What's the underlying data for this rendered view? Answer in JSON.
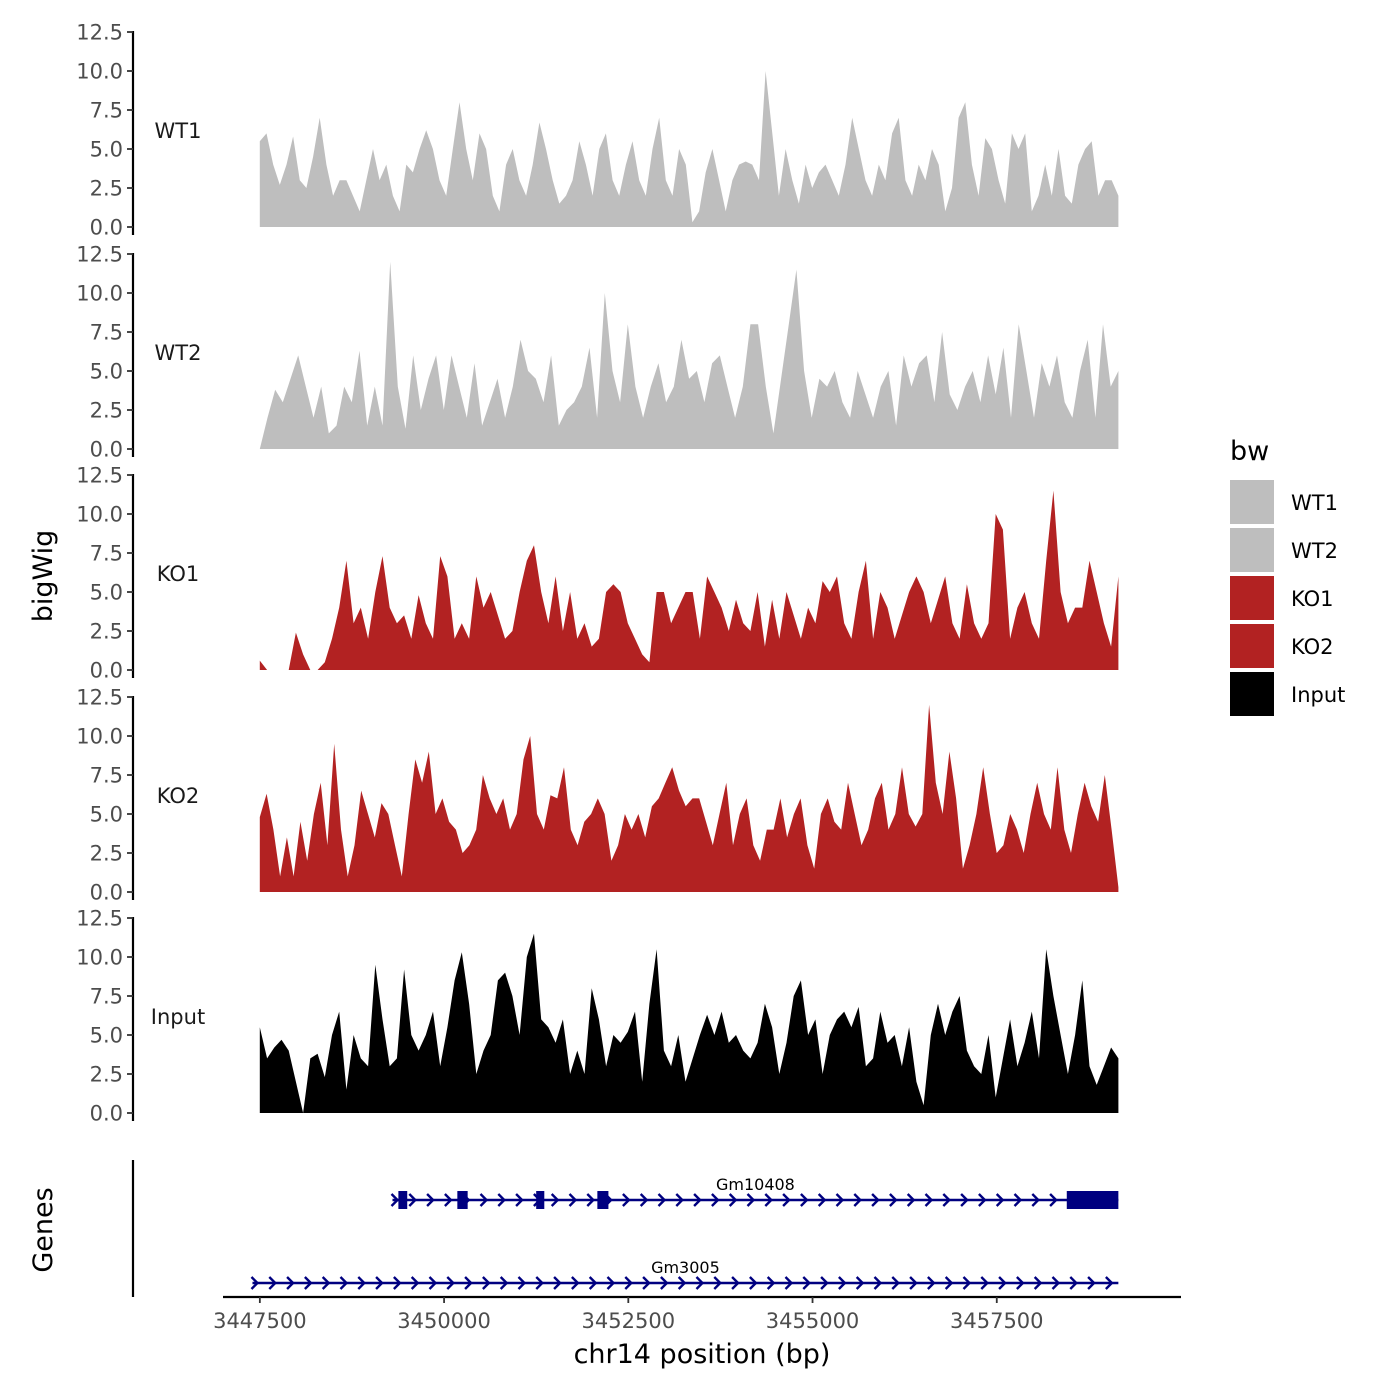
{
  "chart_data": {
    "type": "area",
    "ylabel": "bigWig",
    "xlabel": "chr14 position (bp)",
    "xlim": [
      3447000,
      3460000
    ],
    "x_ticks": [
      3447500,
      3450000,
      3452500,
      3455000,
      3457500
    ],
    "x_tick_labels": [
      "3447500",
      "3450000",
      "3452500",
      "3455000",
      "3457500"
    ],
    "ylim": [
      0,
      12.5
    ],
    "y_ticks": [
      0,
      2.5,
      5,
      7.5,
      10,
      12.5
    ],
    "y_tick_labels": [
      "0.0",
      "2.5",
      "5.0",
      "7.5",
      "10.0",
      "12.5"
    ],
    "legend": {
      "title": "bw",
      "position": "right",
      "entries": [
        {
          "label": "WT1",
          "color": "#bebebe"
        },
        {
          "label": "WT2",
          "color": "#bebebe"
        },
        {
          "label": "KO1",
          "color": "#b22222"
        },
        {
          "label": "KO2",
          "color": "#b22222"
        },
        {
          "label": "Input",
          "color": "#000000"
        }
      ]
    },
    "tracks": [
      {
        "name": "WT1",
        "color": "#bebebe",
        "start": 3447500,
        "end": 3459150,
        "values": [
          5.5,
          6,
          4,
          2.7,
          4,
          5.8,
          3,
          2.5,
          4.5,
          7,
          4,
          2,
          3,
          3,
          2,
          1,
          3,
          5,
          3,
          4,
          2,
          1,
          4,
          3.5,
          5,
          6.2,
          5,
          3,
          2,
          5,
          8,
          5,
          3,
          6,
          5,
          2,
          1,
          4,
          5,
          3,
          2,
          4,
          6.7,
          5,
          3,
          1.5,
          2,
          3,
          5.5,
          4,
          2,
          5,
          6,
          3,
          2,
          4,
          5.5,
          3,
          2,
          5,
          7,
          3,
          2,
          5,
          4,
          0.3,
          1,
          3.5,
          5,
          3,
          1,
          3,
          4,
          4.2,
          4,
          3,
          10,
          6,
          2,
          5,
          3,
          1.5,
          4,
          2.5,
          3.5,
          4,
          3,
          2,
          4,
          7,
          5,
          3,
          2,
          4,
          3,
          6,
          7,
          3,
          2,
          4,
          3,
          5,
          4,
          1,
          2.5,
          7,
          8,
          4,
          2,
          5.7,
          5,
          3,
          1.5,
          6,
          5,
          6,
          1,
          2,
          4,
          2,
          5,
          2,
          1.5,
          4,
          5,
          5.5,
          2,
          3,
          3,
          2
        ]
      },
      {
        "name": "WT2",
        "color": "#bebebe",
        "start": 3447500,
        "end": 3459150,
        "values": [
          0,
          2,
          3.8,
          3,
          4.5,
          6,
          4,
          2,
          4,
          1,
          1.5,
          4,
          3,
          6.3,
          1.5,
          4,
          1.5,
          12,
          4,
          1.3,
          6,
          2.5,
          4.5,
          6,
          2.5,
          6,
          4,
          2,
          5.5,
          1.5,
          3,
          4.5,
          2,
          4,
          7,
          5,
          4.5,
          3,
          6,
          1.5,
          2.5,
          3,
          4,
          6.5,
          2,
          10,
          5,
          3,
          8,
          4,
          2,
          4,
          5.5,
          3,
          4,
          7,
          4.5,
          5,
          3,
          5.5,
          6,
          4,
          2,
          4,
          8,
          8,
          4,
          1,
          4.5,
          8,
          11.5,
          5,
          2,
          4.5,
          4,
          5,
          3,
          2,
          5,
          3.5,
          2,
          4,
          5,
          1.5,
          6,
          4,
          5.5,
          6,
          3,
          7.5,
          3.5,
          2.5,
          4,
          5,
          3,
          6,
          3.5,
          6.5,
          2,
          8,
          5,
          2,
          5.5,
          4,
          6,
          3,
          2,
          5,
          7,
          2,
          8,
          4,
          5
        ]
      },
      {
        "name": "KO1",
        "color": "#b22222",
        "start": 3447500,
        "end": 3459150,
        "values": [
          0.6,
          0,
          0,
          0,
          0,
          2.4,
          1,
          0,
          0,
          0.5,
          2,
          4,
          7,
          3,
          4,
          2,
          5,
          7.3,
          4,
          3,
          3.5,
          2,
          4.8,
          3,
          2,
          7.3,
          6,
          2,
          3,
          2,
          6,
          4,
          5,
          3.5,
          2,
          2.5,
          5,
          7,
          8,
          5,
          3,
          6,
          2.5,
          5,
          2,
          3,
          1.5,
          2,
          5,
          5.5,
          5,
          3,
          2,
          1,
          0.5,
          5,
          5,
          3,
          4,
          5,
          5,
          2,
          6,
          5,
          4,
          2.5,
          4.5,
          3,
          2.5,
          5,
          1.5,
          4.5,
          2,
          5,
          3.5,
          2,
          4,
          3,
          5.7,
          5,
          6,
          3,
          2,
          5,
          7,
          2,
          5,
          4,
          2,
          3.5,
          5,
          6,
          5,
          3,
          4.5,
          6,
          3,
          2,
          5.5,
          3,
          2,
          3,
          10,
          9,
          2,
          4,
          5,
          3,
          2,
          7,
          11.5,
          5,
          3,
          4,
          4,
          7,
          5,
          3,
          1.5,
          6
        ]
      },
      {
        "name": "KO2",
        "color": "#b22222",
        "start": 3447500,
        "end": 3459150,
        "values": [
          4.8,
          6.3,
          4,
          1,
          3.5,
          1,
          4.5,
          2,
          5,
          7,
          3,
          9.5,
          4,
          1,
          3,
          6.5,
          5,
          3.5,
          5.7,
          5,
          3,
          1,
          5,
          8.5,
          7,
          9,
          5,
          6,
          4.5,
          4,
          2.5,
          3,
          4,
          7.5,
          6,
          5,
          6,
          4,
          5,
          8.5,
          10,
          5,
          4,
          6.2,
          6,
          8,
          4,
          3,
          4.5,
          5,
          6,
          5,
          2,
          3,
          5,
          4,
          5,
          3.5,
          5.5,
          6,
          7,
          8,
          6.5,
          5.5,
          6,
          6,
          4.5,
          3,
          5,
          7,
          3,
          5,
          6,
          3,
          2,
          4,
          4,
          6,
          3.5,
          5,
          6,
          3,
          1.5,
          5,
          6,
          4.5,
          4,
          7,
          5,
          3,
          4,
          6,
          7,
          4,
          5,
          8,
          5,
          4.2,
          5,
          12,
          7,
          5,
          9,
          6,
          1.5,
          3,
          5,
          8,
          5,
          2.5,
          3,
          5,
          4,
          2.5,
          5,
          7,
          5,
          4,
          8,
          4,
          2.5,
          5,
          7,
          5.5,
          4.5,
          7.5,
          4,
          0.3
        ]
      },
      {
        "name": "Input",
        "color": "#000000",
        "start": 3447500,
        "end": 3459150,
        "values": [
          5.5,
          3.5,
          4.2,
          4.7,
          4,
          2,
          0,
          3.5,
          3.8,
          2.3,
          5,
          6.5,
          1.5,
          5,
          3.5,
          3,
          9.5,
          6,
          3,
          3.5,
          9.2,
          5,
          4,
          5,
          6.5,
          3,
          5.5,
          8.5,
          10.3,
          7,
          2.5,
          4,
          5,
          8.5,
          9,
          7.5,
          5,
          10,
          11.5,
          6,
          5.5,
          4.5,
          6,
          2.5,
          4,
          2.5,
          8,
          6,
          3,
          5,
          4.5,
          5.2,
          6.5,
          2,
          7,
          10.5,
          4,
          3,
          5,
          2,
          3.5,
          5,
          6.3,
          5,
          6.5,
          4.5,
          5,
          4,
          3.5,
          4.5,
          7,
          5.5,
          2.5,
          4.5,
          7.5,
          8.5,
          5,
          6,
          2.5,
          5,
          6,
          6.5,
          5.5,
          6.8,
          3,
          3.5,
          6.5,
          4.5,
          5,
          3,
          5.5,
          2,
          0.5,
          5,
          7,
          5,
          6.5,
          7.5,
          4,
          3,
          2.5,
          5,
          1,
          3.5,
          6,
          3,
          4.5,
          6.5,
          3.5,
          10.5,
          7.5,
          5,
          2.5,
          5,
          8.5,
          3,
          1.8,
          3,
          4.2,
          3.5
        ]
      }
    ],
    "genes": [
      {
        "name": "Gm10408",
        "start": 3449300,
        "end": 3459150,
        "strand": "+",
        "exons": [
          [
            3449380,
            3449500
          ],
          [
            3450180,
            3450320
          ],
          [
            3451250,
            3451360
          ],
          [
            3452080,
            3452230
          ],
          [
            3458450,
            3459150
          ]
        ]
      },
      {
        "name": "Gm3005",
        "start": 3447400,
        "end": 3459150,
        "strand": "+",
        "exons": []
      }
    ],
    "gene_track_label": "Genes"
  }
}
